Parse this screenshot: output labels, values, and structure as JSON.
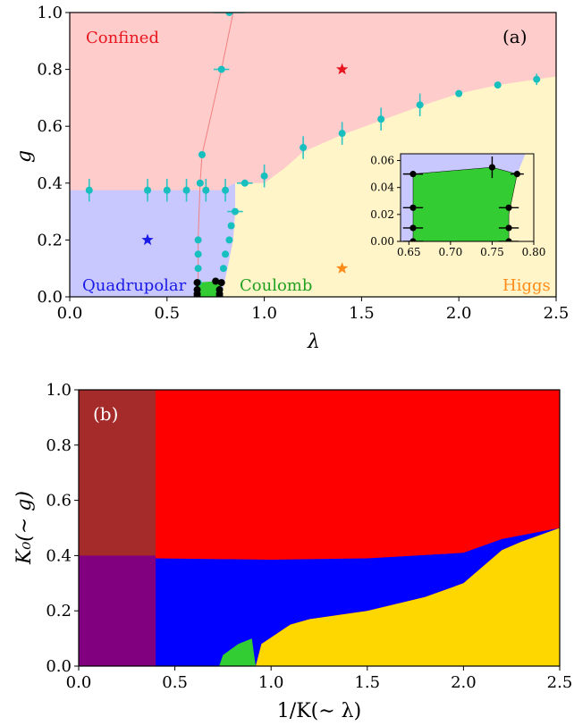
{
  "chart_data": [
    {
      "type": "scatter",
      "panel_label": "(a)",
      "xlabel": "λ",
      "ylabel": "g",
      "xlim": [
        0.0,
        2.5
      ],
      "ylim": [
        0.0,
        1.0
      ],
      "xticks": [
        "0.0",
        "0.5",
        "1.0",
        "1.5",
        "2.0",
        "2.5"
      ],
      "yticks": [
        "0.0",
        "0.2",
        "0.4",
        "0.6",
        "0.8",
        "1.0"
      ],
      "region_labels": {
        "confined": "Confined",
        "quadrupolar": "Quadrupolar",
        "coulomb": "Coulomb",
        "higgs": "Higgs"
      },
      "colors": {
        "confined": "#ffcccc",
        "quadrupolar": "#c8c8ff",
        "coulomb": "#fff5c8",
        "green": "#33cc33",
        "points": "#17bfbf",
        "errorbars": "#2ec4c4",
        "black_points": "#000000",
        "star_confined": "#e8141d",
        "star_quadrupolar": "#1a1ae6",
        "star_higgs": "#ff8c1a",
        "line": "#f08080"
      },
      "regions": {
        "quadrupolar_top": 0.375,
        "confined_boundary": [
          [
            0.0,
            0.375
          ],
          [
            0.78,
            0.375
          ],
          [
            0.85,
            0.4
          ],
          [
            1.0,
            0.4
          ],
          [
            1.1,
            0.45
          ],
          [
            1.2,
            0.51
          ],
          [
            1.4,
            0.57
          ],
          [
            1.6,
            0.62
          ],
          [
            1.8,
            0.67
          ],
          [
            2.0,
            0.715
          ],
          [
            2.2,
            0.745
          ],
          [
            2.5,
            0.775
          ]
        ],
        "coulomb_left_boundary": [
          [
            0.78,
            0.0
          ],
          [
            0.81,
            0.1
          ],
          [
            0.84,
            0.2
          ],
          [
            0.85,
            0.3
          ],
          [
            0.85,
            0.4
          ]
        ],
        "green_region": [
          [
            0.65,
            0.0
          ],
          [
            0.65,
            0.05
          ],
          [
            0.75,
            0.055
          ],
          [
            0.78,
            0.05
          ],
          [
            0.77,
            0.0
          ]
        ]
      },
      "series": [
        {
          "marker": "circle",
          "points": [
            {
              "x": 0.1,
              "y": 0.375,
              "yerr": 0.04
            },
            {
              "x": 0.4,
              "y": 0.375,
              "yerr": 0.04
            },
            {
              "x": 0.5,
              "y": 0.375,
              "yerr": 0.04
            },
            {
              "x": 0.6,
              "y": 0.375,
              "yerr": 0.04
            },
            {
              "x": 0.7,
              "y": 0.375,
              "yerr": 0.04
            },
            {
              "x": 0.8,
              "y": 0.375,
              "yerr": 0.04
            },
            {
              "x": 0.9,
              "y": 0.4,
              "xerr": 0.04
            },
            {
              "x": 1.0,
              "y": 0.425,
              "yerr": 0.04
            },
            {
              "x": 1.2,
              "y": 0.525,
              "yerr": 0.04
            },
            {
              "x": 1.4,
              "y": 0.575,
              "yerr": 0.04
            },
            {
              "x": 1.6,
              "y": 0.625,
              "yerr": 0.04
            },
            {
              "x": 1.8,
              "y": 0.675,
              "yerr": 0.04
            },
            {
              "x": 2.0,
              "y": 0.715
            },
            {
              "x": 2.2,
              "y": 0.745
            },
            {
              "x": 2.4,
              "y": 0.765,
              "yerr": 0.02
            },
            {
              "x": 0.85,
              "y": 0.3,
              "xerr": 0.04
            },
            {
              "x": 0.83,
              "y": 0.25
            },
            {
              "x": 0.82,
              "y": 0.2
            },
            {
              "x": 0.8,
              "y": 0.15
            },
            {
              "x": 0.79,
              "y": 0.1
            },
            {
              "x": 0.66,
              "y": 0.05
            },
            {
              "x": 0.66,
              "y": 0.1
            },
            {
              "x": 0.66,
              "y": 0.15
            },
            {
              "x": 0.66,
              "y": 0.2
            },
            {
              "x": 0.67,
              "y": 0.4
            },
            {
              "x": 0.68,
              "y": 0.5
            },
            {
              "x": 0.78,
              "y": 0.8,
              "xerr": 0.04
            },
            {
              "x": 0.82,
              "y": 1.0,
              "xerr": 0.08
            }
          ]
        },
        {
          "marker": "circle-black",
          "points": [
            {
              "x": 0.655,
              "y": 0.05
            },
            {
              "x": 0.655,
              "y": 0.025
            },
            {
              "x": 0.655,
              "y": 0.01
            },
            {
              "x": 0.655,
              "y": 0.0
            },
            {
              "x": 0.75,
              "y": 0.055
            },
            {
              "x": 0.78,
              "y": 0.05
            },
            {
              "x": 0.77,
              "y": 0.025
            },
            {
              "x": 0.77,
              "y": 0.01
            },
            {
              "x": 0.77,
              "y": 0.0
            }
          ]
        },
        {
          "marker": "star",
          "points": [
            {
              "x": 1.4,
              "y": 0.8,
              "color": "star_confined"
            },
            {
              "x": 0.4,
              "y": 0.2,
              "color": "star_quadrupolar"
            },
            {
              "x": 1.4,
              "y": 0.1,
              "color": "star_higgs"
            }
          ]
        }
      ],
      "inset": {
        "xlim": [
          0.64,
          0.8
        ],
        "ylim": [
          0.0,
          0.065
        ],
        "xticks": [
          "0.65",
          "0.70",
          "0.75",
          "0.80"
        ],
        "yticks": [
          "0.00",
          "0.02",
          "0.04",
          "0.06"
        ],
        "points": [
          {
            "x": 0.655,
            "y": 0.05,
            "xerr": 0.012
          },
          {
            "x": 0.655,
            "y": 0.025,
            "xerr": 0.012
          },
          {
            "x": 0.655,
            "y": 0.01,
            "xerr": 0.012
          },
          {
            "x": 0.655,
            "y": 0.0,
            "xerr": 0.012
          },
          {
            "x": 0.75,
            "y": 0.055,
            "yerr": 0.008
          },
          {
            "x": 0.78,
            "y": 0.05,
            "xerr": 0.008
          },
          {
            "x": 0.77,
            "y": 0.025,
            "xerr": 0.012
          },
          {
            "x": 0.77,
            "y": 0.01,
            "xerr": 0.012
          },
          {
            "x": 0.77,
            "y": 0.0,
            "xerr": 0.012
          }
        ]
      }
    },
    {
      "type": "heatmap",
      "panel_label": "(b)",
      "xlabel": "1/K(∼ λ)",
      "ylabel": "K₀(∼ g)",
      "xlim": [
        0.0,
        2.5
      ],
      "ylim": [
        0.0,
        1.0
      ],
      "xticks": [
        "0.0",
        "0.5",
        "1.0",
        "1.5",
        "2.0",
        "2.5"
      ],
      "yticks": [
        "0.0",
        "0.2",
        "0.4",
        "0.6",
        "0.8",
        "1.0"
      ],
      "colors": {
        "red": "#ff0000",
        "brown": "#a52a2a",
        "purple": "#800080",
        "blue": "#0000ff",
        "yellow": "#ffd700",
        "green": "#32cd32"
      },
      "boundaries": {
        "brown_purple_x": 0.4,
        "purple_top": 0.4,
        "red_blue_boundary": [
          [
            0.4,
            0.39
          ],
          [
            1.0,
            0.385
          ],
          [
            1.5,
            0.39
          ],
          [
            2.0,
            0.41
          ],
          [
            2.2,
            0.46
          ],
          [
            2.5,
            0.5
          ]
        ],
        "blue_yellow_boundary": [
          [
            0.92,
            0.0
          ],
          [
            0.95,
            0.08
          ],
          [
            1.1,
            0.15
          ],
          [
            1.2,
            0.17
          ],
          [
            1.5,
            0.2
          ],
          [
            1.8,
            0.25
          ],
          [
            2.0,
            0.3
          ],
          [
            2.2,
            0.42
          ],
          [
            2.3,
            0.45
          ],
          [
            2.5,
            0.5
          ]
        ],
        "green_region": [
          [
            0.73,
            0.0
          ],
          [
            0.75,
            0.04
          ],
          [
            0.83,
            0.08
          ],
          [
            0.9,
            0.1
          ],
          [
            0.92,
            0.0
          ]
        ]
      }
    }
  ]
}
